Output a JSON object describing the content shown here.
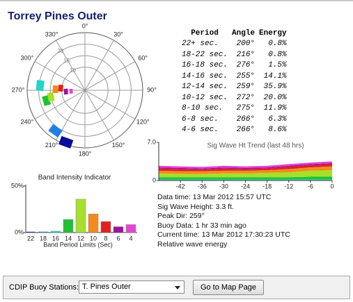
{
  "title": "Torrey Pines Outer",
  "table": {
    "headers": [
      "Period",
      "Angle",
      "Energy"
    ],
    "rows": [
      [
        "22+ sec.",
        "200°",
        "0.8%"
      ],
      [
        "18-22 sec.",
        "216°",
        "0.8%"
      ],
      [
        "16-18 sec.",
        "276°",
        "1.5%"
      ],
      [
        "14-16 sec.",
        "255°",
        "14.1%"
      ],
      [
        "12-14 sec.",
        "259°",
        "35.9%"
      ],
      [
        "10-12 sec.",
        "272°",
        "20.0%"
      ],
      [
        "8-10 sec.",
        "275°",
        "11.9%"
      ],
      [
        "6-8 sec.",
        "266°",
        "6.3%"
      ],
      [
        "4-6 sec.",
        "266°",
        "8.6%"
      ]
    ],
    "colors": [
      "#0a0a9c",
      "#1f7fe6",
      "#22d6c6",
      "#1fc232",
      "#a6e02a",
      "#f28a1e",
      "#e0201e",
      "#a0109e",
      "#e444d4"
    ]
  },
  "info": [
    "Data time: 13 Mar 2012 15:57 UTC",
    "Sig Wave Height: 3.3 ft.",
    "Peak Dir: 259°",
    "Buoy Data: 1 hr 33 min ago",
    "Current time: 13 Mar 2012 17:30:23  UTC",
    "Relative wave energy"
  ],
  "controls": {
    "label": "CDIP Buoy Stations:",
    "station": "T. Pines Outer",
    "button": "Go to Map Page"
  },
  "chart_data": [
    {
      "type": "polar",
      "angles": [
        200,
        216,
        276,
        255,
        259,
        272,
        275,
        266,
        266
      ],
      "rlim": [
        0,
        25
      ],
      "rticks": [
        10,
        15,
        20
      ],
      "thetaticks": [
        {
          "value": 0,
          "label": "0°"
        },
        {
          "value": 30,
          "label": "30°"
        },
        {
          "value": 60,
          "label": "60°"
        },
        {
          "value": 90,
          "label": "90°"
        },
        {
          "value": 120,
          "label": "120°"
        },
        {
          "value": 150,
          "label": "150°"
        },
        {
          "value": 180,
          "label": "180°"
        },
        {
          "value": 210,
          "label": "210°"
        },
        {
          "value": 240,
          "label": "240°"
        },
        {
          "value": 270,
          "label": "270°"
        },
        {
          "value": 300,
          "label": "300°"
        },
        {
          "value": 330,
          "label": "330°"
        }
      ]
    },
    {
      "type": "bar",
      "title": "Band Intensity Indicator",
      "xlabel": "Band Period Limits (Sec)",
      "categories": [
        "22",
        "18",
        "16",
        "14",
        "12",
        "10",
        "8",
        "6",
        "4"
      ],
      "values": [
        0.8,
        0.8,
        1.5,
        14.1,
        35.9,
        20.0,
        11.9,
        6.3,
        8.6
      ],
      "ylim": [
        0,
        50
      ],
      "yticks": [
        {
          "value": 0,
          "label": "0%"
        },
        {
          "value": 50,
          "label": "50%"
        }
      ]
    },
    {
      "type": "area",
      "title": "Sig Wave Ht Trend (last 48 hrs)",
      "x": [
        -48,
        -42,
        -36,
        -30,
        -24,
        -18,
        -12,
        -6,
        0
      ],
      "xlim": [
        -48,
        0
      ],
      "xticks": [
        -42,
        -36,
        -30,
        -24,
        -18,
        -12,
        -6,
        0
      ],
      "ylim": [
        0,
        7
      ],
      "yticks": [
        0,
        {
          "value": 7,
          "label": "7.0"
        }
      ],
      "series": [
        {
          "color": "#0a0a9c",
          "values": [
            0.05,
            0.05,
            0.05,
            0.05,
            0.05,
            0.05,
            0.05,
            0.05,
            0.05
          ]
        },
        {
          "color": "#1f7fe6",
          "values": [
            0.05,
            0.05,
            0.05,
            0.05,
            0.05,
            0.05,
            0.05,
            0.05,
            0.05
          ]
        },
        {
          "color": "#22d6c6",
          "values": [
            0.1,
            0.1,
            0.1,
            0.1,
            0.1,
            0.1,
            0.1,
            0.1,
            0.1
          ]
        },
        {
          "color": "#1fc232",
          "values": [
            0.4,
            0.4,
            0.4,
            0.4,
            0.4,
            0.4,
            0.4,
            0.5,
            0.5
          ]
        },
        {
          "color": "#a6e02a",
          "values": [
            0.7,
            0.6,
            0.6,
            0.7,
            0.7,
            0.8,
            0.9,
            1.1,
            1.2
          ]
        },
        {
          "color": "#f28a1e",
          "values": [
            0.5,
            0.5,
            0.5,
            0.5,
            0.5,
            0.5,
            0.6,
            0.6,
            0.7
          ]
        },
        {
          "color": "#e0201e",
          "values": [
            0.4,
            0.4,
            0.3,
            0.4,
            0.3,
            0.3,
            0.4,
            0.4,
            0.4
          ]
        },
        {
          "color": "#a0109e",
          "values": [
            0.2,
            0.2,
            0.2,
            0.2,
            0.2,
            0.2,
            0.2,
            0.2,
            0.2
          ]
        },
        {
          "color": "#e444d4",
          "values": [
            0.3,
            0.3,
            0.3,
            0.3,
            0.3,
            0.3,
            0.3,
            0.3,
            0.3
          ]
        }
      ]
    }
  ]
}
